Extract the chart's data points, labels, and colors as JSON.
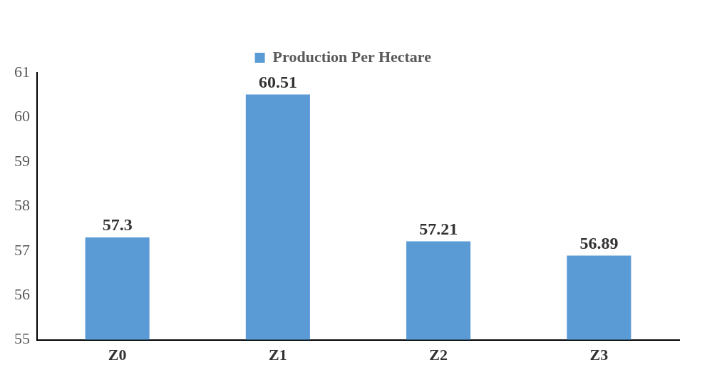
{
  "chart_data": {
    "type": "bar",
    "categories": [
      "Z0",
      "Z1",
      "Z2",
      "Z3"
    ],
    "series": [
      {
        "name": "Production Per Hectare",
        "color": "#5b9bd5",
        "values": [
          57.3,
          60.51,
          57.21,
          56.89
        ]
      }
    ],
    "ylim": [
      55,
      61
    ],
    "yticks": [
      55,
      56,
      57,
      58,
      59,
      60,
      61
    ],
    "grid": false,
    "legend": "top",
    "data_labels": true
  }
}
